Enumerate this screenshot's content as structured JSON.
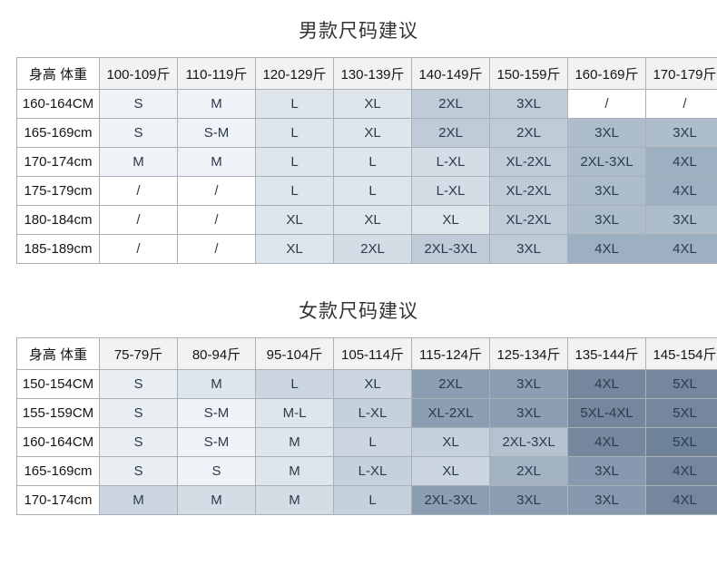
{
  "colors": {
    "page_bg": "#ffffff",
    "title_text": "#333333",
    "header_bg": "#f2f2f2",
    "header_text": "#151515",
    "cell_text": "#2c3a4e",
    "border": "#a9b0b7",
    "shades": {
      "w": "#ffffff",
      "a": "#eff2f6",
      "b": "#e9eef3",
      "c": "#dee5eb",
      "d": "#d4dde5",
      "e": "#ccd6e0",
      "f": "#c5d1db",
      "g": "#bfcbd7",
      "h": "#aebdcc",
      "i": "#b5c3d1",
      "j": "#a2b2c3",
      "k": "#9db0c2",
      "l": "#8c9eb2",
      "m": "#8799ae",
      "n": "#74879d",
      "o": "#6e8298"
    }
  },
  "chart_data": [
    {
      "type": "table",
      "title": "男款尺码建议",
      "corner_label": "身高 体重",
      "columns": [
        "100-109斤",
        "110-119斤",
        "120-129斤",
        "130-139斤",
        "140-149斤",
        "150-159斤",
        "160-169斤",
        "170-179斤"
      ],
      "rows": [
        {
          "label": "160-164CM",
          "cells": [
            {
              "t": "S",
              "s": "a"
            },
            {
              "t": "M",
              "s": "a"
            },
            {
              "t": "L",
              "s": "c"
            },
            {
              "t": "XL",
              "s": "c"
            },
            {
              "t": "2XL",
              "s": "g"
            },
            {
              "t": "3XL",
              "s": "g"
            },
            {
              "t": "/",
              "s": "w"
            },
            {
              "t": "/",
              "s": "w"
            }
          ]
        },
        {
          "label": "165-169cm",
          "cells": [
            {
              "t": "S",
              "s": "a"
            },
            {
              "t": "S-M",
              "s": "a"
            },
            {
              "t": "L",
              "s": "c"
            },
            {
              "t": "XL",
              "s": "c"
            },
            {
              "t": "2XL",
              "s": "g"
            },
            {
              "t": "2XL",
              "s": "g"
            },
            {
              "t": "3XL",
              "s": "h"
            },
            {
              "t": "3XL",
              "s": "h"
            }
          ]
        },
        {
          "label": "170-174cm",
          "cells": [
            {
              "t": "M",
              "s": "a"
            },
            {
              "t": "M",
              "s": "a"
            },
            {
              "t": "L",
              "s": "c"
            },
            {
              "t": "L",
              "s": "c"
            },
            {
              "t": "L-XL",
              "s": "d"
            },
            {
              "t": "XL-2XL",
              "s": "g"
            },
            {
              "t": "2XL-3XL",
              "s": "h"
            },
            {
              "t": "4XL",
              "s": "k"
            }
          ]
        },
        {
          "label": "175-179cm",
          "cells": [
            {
              "t": "/",
              "s": "w"
            },
            {
              "t": "/",
              "s": "w"
            },
            {
              "t": "L",
              "s": "c"
            },
            {
              "t": "L",
              "s": "c"
            },
            {
              "t": "L-XL",
              "s": "d"
            },
            {
              "t": "XL-2XL",
              "s": "g"
            },
            {
              "t": "3XL",
              "s": "h"
            },
            {
              "t": "4XL",
              "s": "k"
            }
          ]
        },
        {
          "label": "180-184cm",
          "cells": [
            {
              "t": "/",
              "s": "w"
            },
            {
              "t": "/",
              "s": "w"
            },
            {
              "t": "XL",
              "s": "c"
            },
            {
              "t": "XL",
              "s": "c"
            },
            {
              "t": "XL",
              "s": "c"
            },
            {
              "t": "XL-2XL",
              "s": "g"
            },
            {
              "t": "3XL",
              "s": "h"
            },
            {
              "t": "3XL",
              "s": "h"
            }
          ]
        },
        {
          "label": "185-189cm",
          "cells": [
            {
              "t": "/",
              "s": "w"
            },
            {
              "t": "/",
              "s": "w"
            },
            {
              "t": "XL",
              "s": "c"
            },
            {
              "t": "2XL",
              "s": "d"
            },
            {
              "t": "2XL-3XL",
              "s": "g"
            },
            {
              "t": "3XL",
              "s": "g"
            },
            {
              "t": "4XL",
              "s": "k"
            },
            {
              "t": "4XL",
              "s": "k"
            }
          ]
        }
      ]
    },
    {
      "type": "table",
      "title": "女款尺码建议",
      "corner_label": "身高 体重",
      "columns": [
        "75-79斤",
        "80-94斤",
        "95-104斤",
        "105-114斤",
        "115-124斤",
        "125-134斤",
        "135-144斤",
        "145-154斤"
      ],
      "rows": [
        {
          "label": "150-154CM",
          "cells": [
            {
              "t": "S",
              "s": "b"
            },
            {
              "t": "M",
              "s": "c"
            },
            {
              "t": "L",
              "s": "e"
            },
            {
              "t": "XL",
              "s": "e"
            },
            {
              "t": "2XL",
              "s": "l"
            },
            {
              "t": "3XL",
              "s": "l"
            },
            {
              "t": "4XL",
              "s": "n"
            },
            {
              "t": "5XL",
              "s": "n"
            }
          ]
        },
        {
          "label": "155-159CM",
          "cells": [
            {
              "t": "S",
              "s": "b"
            },
            {
              "t": "S-M",
              "s": "a"
            },
            {
              "t": "M-L",
              "s": "c"
            },
            {
              "t": "L-XL",
              "s": "f"
            },
            {
              "t": "XL-2XL",
              "s": "l"
            },
            {
              "t": "3XL",
              "s": "l"
            },
            {
              "t": "5XL-4XL",
              "s": "n"
            },
            {
              "t": "5XL",
              "s": "n"
            }
          ]
        },
        {
          "label": "160-164CM",
          "cells": [
            {
              "t": "S",
              "s": "b"
            },
            {
              "t": "S-M",
              "s": "a"
            },
            {
              "t": "M",
              "s": "c"
            },
            {
              "t": "L",
              "s": "e"
            },
            {
              "t": "XL",
              "s": "f"
            },
            {
              "t": "2XL-3XL",
              "s": "i"
            },
            {
              "t": "4XL",
              "s": "n"
            },
            {
              "t": "5XL",
              "s": "o"
            }
          ]
        },
        {
          "label": "165-169cm",
          "cells": [
            {
              "t": "S",
              "s": "b"
            },
            {
              "t": "S",
              "s": "a"
            },
            {
              "t": "M",
              "s": "c"
            },
            {
              "t": "L-XL",
              "s": "f"
            },
            {
              "t": "XL",
              "s": "e"
            },
            {
              "t": "2XL",
              "s": "j"
            },
            {
              "t": "3XL",
              "s": "m"
            },
            {
              "t": "4XL",
              "s": "n"
            }
          ]
        },
        {
          "label": "170-174cm",
          "cells": [
            {
              "t": "M",
              "s": "e"
            },
            {
              "t": "M",
              "s": "d"
            },
            {
              "t": "M",
              "s": "d"
            },
            {
              "t": "L",
              "s": "f"
            },
            {
              "t": "2XL-3XL",
              "s": "l"
            },
            {
              "t": "3XL",
              "s": "l"
            },
            {
              "t": "3XL",
              "s": "m"
            },
            {
              "t": "4XL",
              "s": "n"
            }
          ]
        }
      ]
    }
  ]
}
